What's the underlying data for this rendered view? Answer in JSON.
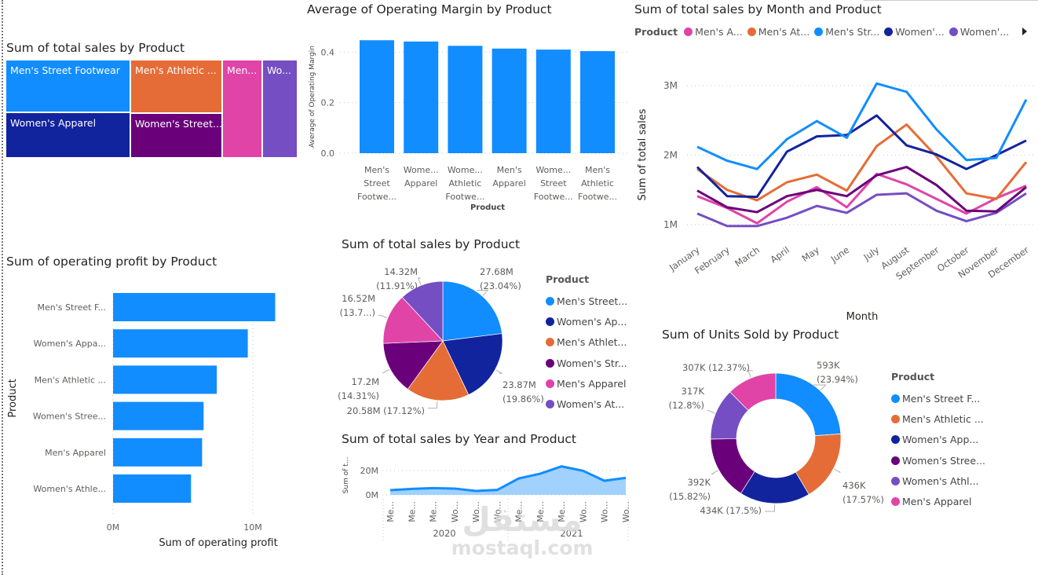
{
  "colors": {
    "blue": "#118dff",
    "navy": "#12239e",
    "orange": "#e66c37",
    "purple": "#6b007b",
    "pink": "#e044a7",
    "violet": "#744ec2"
  },
  "treemap": {
    "title": "Sum of total sales by Product",
    "cells": [
      {
        "label": "Men's Street Footwear",
        "color": "#118dff"
      },
      {
        "label": "Women's Apparel",
        "color": "#12239e"
      },
      {
        "label": "Men's Athletic ...",
        "color": "#e66c37"
      },
      {
        "label": "Women's Street...",
        "color": "#6b007b"
      },
      {
        "label": "Men...",
        "color": "#e044a7"
      },
      {
        "label": "Wo...",
        "color": "#744ec2"
      }
    ]
  },
  "watermark": {
    "arabic": "مستقل",
    "latin": "mostaql.com"
  },
  "chart_data": [
    {
      "id": "margin",
      "type": "bar",
      "title": "Average of Operating Margin by Product",
      "xlabel": "Product",
      "ylabel": "Average of Operating Margin",
      "ylim": [
        0,
        0.45
      ],
      "yticks": [
        "0.0",
        "0.2",
        "0.4"
      ],
      "ytick_values": [
        0,
        0.2,
        0.4
      ],
      "grid": true,
      "categories": [
        [
          "Men's",
          "Street",
          "Footwe..."
        ],
        [
          "Wome...",
          "Apparel"
        ],
        [
          "Wome...",
          "Athletic",
          "Footwe..."
        ],
        [
          "Men's",
          "Apparel"
        ],
        [
          "Wome...",
          "Street",
          "Footwe..."
        ],
        [
          "Men's",
          "Athletic",
          "Footwe..."
        ]
      ],
      "values": [
        0.447,
        0.442,
        0.425,
        0.414,
        0.41,
        0.404
      ],
      "color": "#118dff"
    },
    {
      "id": "monthly",
      "type": "line",
      "title": "Sum of total sales by Month and Product",
      "xlabel": "Month",
      "ylabel": "Sum of total sales",
      "legend_title": "Product",
      "legend_position": "top",
      "yticks": [
        "1M",
        "2M",
        "3M"
      ],
      "ytick_values": [
        1,
        2,
        3
      ],
      "grid": true,
      "categories": [
        "January",
        "February",
        "March",
        "April",
        "May",
        "June",
        "July",
        "August",
        "September",
        "October",
        "November",
        "December"
      ],
      "series": [
        {
          "name": "Men's A...",
          "color": "#e044a7",
          "values": [
            1.41,
            1.24,
            1.02,
            1.33,
            1.54,
            1.25,
            1.73,
            1.58,
            1.37,
            1.16,
            1.38,
            1.56
          ]
        },
        {
          "name": "Men's At...",
          "color": "#e66c37",
          "values": [
            1.8,
            1.5,
            1.35,
            1.61,
            1.72,
            1.49,
            2.13,
            2.44,
            1.98,
            1.45,
            1.37,
            1.9
          ]
        },
        {
          "name": "Men's Str...",
          "color": "#118dff",
          "values": [
            2.12,
            1.92,
            1.8,
            2.23,
            2.49,
            2.25,
            3.03,
            2.91,
            2.37,
            1.93,
            1.96,
            2.8
          ]
        },
        {
          "name": "Women'...",
          "color": "#12239e",
          "values": [
            1.83,
            1.41,
            1.4,
            2.05,
            2.27,
            2.29,
            2.57,
            2.14,
            2.01,
            1.8,
            2.0,
            2.21
          ]
        },
        {
          "name": "Women'...",
          "color": "#744ec2",
          "values": [
            1.16,
            0.98,
            0.98,
            1.1,
            1.27,
            1.17,
            1.43,
            1.45,
            1.2,
            1.05,
            1.17,
            1.45
          ]
        },
        {
          "color": "#6b007b",
          "values": [
            1.49,
            1.25,
            1.18,
            1.41,
            1.5,
            1.41,
            1.71,
            1.83,
            1.57,
            1.2,
            1.19,
            1.54
          ]
        }
      ]
    },
    {
      "id": "profit",
      "type": "bar",
      "orientation": "horizontal",
      "title": "Sum of operating profit by Product",
      "xlabel": "Sum of operating profit",
      "ylabel": "Product",
      "xticks": [
        "0M",
        "10M"
      ],
      "xtick_values": [
        0,
        10
      ],
      "categories": [
        "Men's Street F...",
        "Women's Appa...",
        "Men's Athletic ...",
        "Women's Stree...",
        "Men's Apparel",
        "Women's Athle..."
      ],
      "values": [
        11.6,
        9.64,
        7.42,
        6.48,
        6.37,
        5.58
      ],
      "color": "#118dff"
    },
    {
      "id": "pie",
      "type": "pie",
      "title": "Sum of total sales by Product",
      "legend_title": "Product",
      "legend_position": "right",
      "legend": [
        {
          "label": "Men's Street...",
          "color": "#118dff"
        },
        {
          "label": "Women's Ap...",
          "color": "#12239e"
        },
        {
          "label": "Men's Athlet...",
          "color": "#e66c37"
        },
        {
          "label": "Women's Str...",
          "color": "#6b007b"
        },
        {
          "label": "Men's Apparel",
          "color": "#e044a7"
        },
        {
          "label": "Women's At...",
          "color": "#744ec2"
        }
      ],
      "slices": [
        {
          "value": 27.68,
          "percent": 23.04,
          "labels": [
            "27.68M",
            "(23.04%)"
          ],
          "color": "#118dff"
        },
        {
          "value": 23.87,
          "percent": 19.86,
          "labels": [
            "23.87M",
            "(19.86%)"
          ],
          "color": "#12239e"
        },
        {
          "value": 20.58,
          "percent": 17.12,
          "labels": [
            "20.58M (17.12%)"
          ],
          "color": "#e66c37"
        },
        {
          "value": 17.2,
          "percent": 14.31,
          "labels": [
            "17.2M",
            "(14.31%)"
          ],
          "color": "#6b007b"
        },
        {
          "value": 16.52,
          "percent": 13.75,
          "labels": [
            "16.52M",
            "(13.7...)"
          ],
          "color": "#e044a7"
        },
        {
          "value": 14.32,
          "percent": 11.91,
          "labels": [
            "14.32M",
            "(11.91%)"
          ],
          "color": "#744ec2"
        }
      ]
    },
    {
      "id": "yearly",
      "type": "area",
      "title": "Sum of total sales by Year and Product",
      "ylabel": "Sum of t...",
      "yticks": [
        "0M",
        "20M"
      ],
      "ytick_values": [
        0,
        20
      ],
      "grid": true,
      "categories": [
        "Me...",
        "Me...",
        "Me...",
        "Wo...",
        "Wo...",
        "Wo...",
        "Me...",
        "Me...",
        "Me...",
        "Wo...",
        "Wo...",
        "Wo..."
      ],
      "groups": [
        "2020",
        "2021"
      ],
      "values": [
        3.9,
        4.9,
        5.6,
        5.2,
        3.2,
        4.1,
        13.5,
        17.4,
        23.4,
        19.8,
        11.6,
        14.0
      ],
      "color": "#118dff",
      "fill": "#a0d1ff"
    },
    {
      "id": "donut",
      "type": "pie",
      "variant": "donut",
      "title": "Sum of Units Sold by Product",
      "legend_title": "Product",
      "legend_position": "right",
      "legend": [
        {
          "label": "Men's Street F...",
          "color": "#118dff"
        },
        {
          "label": "Men's Athletic ...",
          "color": "#e66c37"
        },
        {
          "label": "Women's App...",
          "color": "#12239e"
        },
        {
          "label": "Women's Stree...",
          "color": "#6b007b"
        },
        {
          "label": "Women's Athl...",
          "color": "#744ec2"
        },
        {
          "label": "Men's Apparel",
          "color": "#e044a7"
        }
      ],
      "slices": [
        {
          "value": 593,
          "percent": 23.94,
          "labels": [
            "593K",
            "(23.94%)"
          ],
          "color": "#118dff"
        },
        {
          "value": 436,
          "percent": 17.57,
          "labels": [
            "436K",
            "(17.57%)"
          ],
          "color": "#e66c37"
        },
        {
          "value": 434,
          "percent": 17.5,
          "labels": [
            "434K (17.5%)"
          ],
          "color": "#12239e"
        },
        {
          "value": 392,
          "percent": 15.82,
          "labels": [
            "392K",
            "(15.82%)"
          ],
          "color": "#6b007b"
        },
        {
          "value": 317,
          "percent": 12.8,
          "labels": [
            "317K",
            "(12.8%)"
          ],
          "color": "#744ec2"
        },
        {
          "value": 307,
          "percent": 12.37,
          "labels": [
            "307K (12.37%)"
          ],
          "color": "#e044a7"
        }
      ]
    }
  ]
}
